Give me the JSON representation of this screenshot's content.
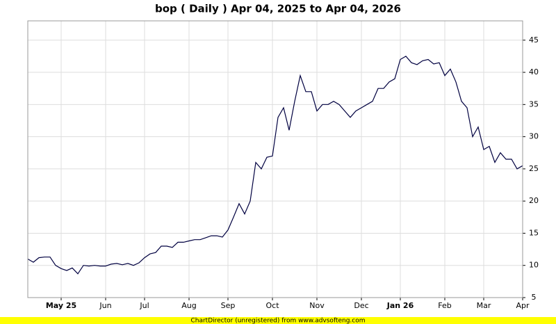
{
  "chart_data": {
    "type": "line",
    "title": "bop ( Daily ) Apr 04, 2025 to Apr 04, 2026",
    "footnote": "ChartDirector (unregistered) from www.advsofteng.com",
    "categories": [
      null,
      null,
      null,
      null,
      null,
      null,
      "May 25",
      null,
      null,
      null,
      null,
      null,
      null,
      null,
      "Jun",
      null,
      null,
      null,
      null,
      null,
      null,
      "Jul",
      null,
      null,
      null,
      null,
      null,
      null,
      null,
      "Aug",
      null,
      null,
      null,
      null,
      null,
      null,
      "Sep",
      null,
      null,
      null,
      null,
      null,
      null,
      null,
      "Oct",
      null,
      null,
      null,
      null,
      null,
      null,
      null,
      "Nov",
      null,
      null,
      null,
      null,
      null,
      null,
      null,
      "Dec",
      null,
      null,
      null,
      null,
      null,
      null,
      "Jan 26",
      null,
      null,
      null,
      null,
      null,
      null,
      null,
      "Feb",
      null,
      null,
      null,
      null,
      null,
      null,
      "Mar",
      null,
      null,
      null,
      null,
      null,
      null,
      "Apr"
    ],
    "series": [
      {
        "name": "bop",
        "color": "#000040",
        "values": [
          11.0,
          10.5,
          11.2,
          11.3,
          11.3,
          10.0,
          9.5,
          9.2,
          9.6,
          8.7,
          10.0,
          9.9,
          10.0,
          9.9,
          9.9,
          10.2,
          10.3,
          10.1,
          10.3,
          10.0,
          10.4,
          11.2,
          11.8,
          12.0,
          13.0,
          13.0,
          12.8,
          13.6,
          13.6,
          13.8,
          14.0,
          14.0,
          14.3,
          14.6,
          14.6,
          14.4,
          15.5,
          17.5,
          19.6,
          18.0,
          20.0,
          26.0,
          25.0,
          26.8,
          27.0,
          33.0,
          34.5,
          31.0,
          35.5,
          39.5,
          37.0,
          37.0,
          34.0,
          35.0,
          35.0,
          35.5,
          35.0,
          34.0,
          33.0,
          34.0,
          34.5,
          35.0,
          35.5,
          37.5,
          37.5,
          38.5,
          39.0,
          42.0,
          42.5,
          41.5,
          41.2,
          41.8,
          42.0,
          41.3,
          41.5,
          39.5,
          40.5,
          38.5,
          35.5,
          34.5,
          30.0,
          31.5,
          28.0,
          28.5,
          26.0,
          27.5,
          26.5,
          26.5,
          25.0,
          25.5
        ]
      }
    ],
    "ylim": [
      5,
      48
    ],
    "yticks": [
      5,
      10,
      15,
      20,
      25,
      30,
      35,
      40,
      45
    ],
    "grid": true
  }
}
